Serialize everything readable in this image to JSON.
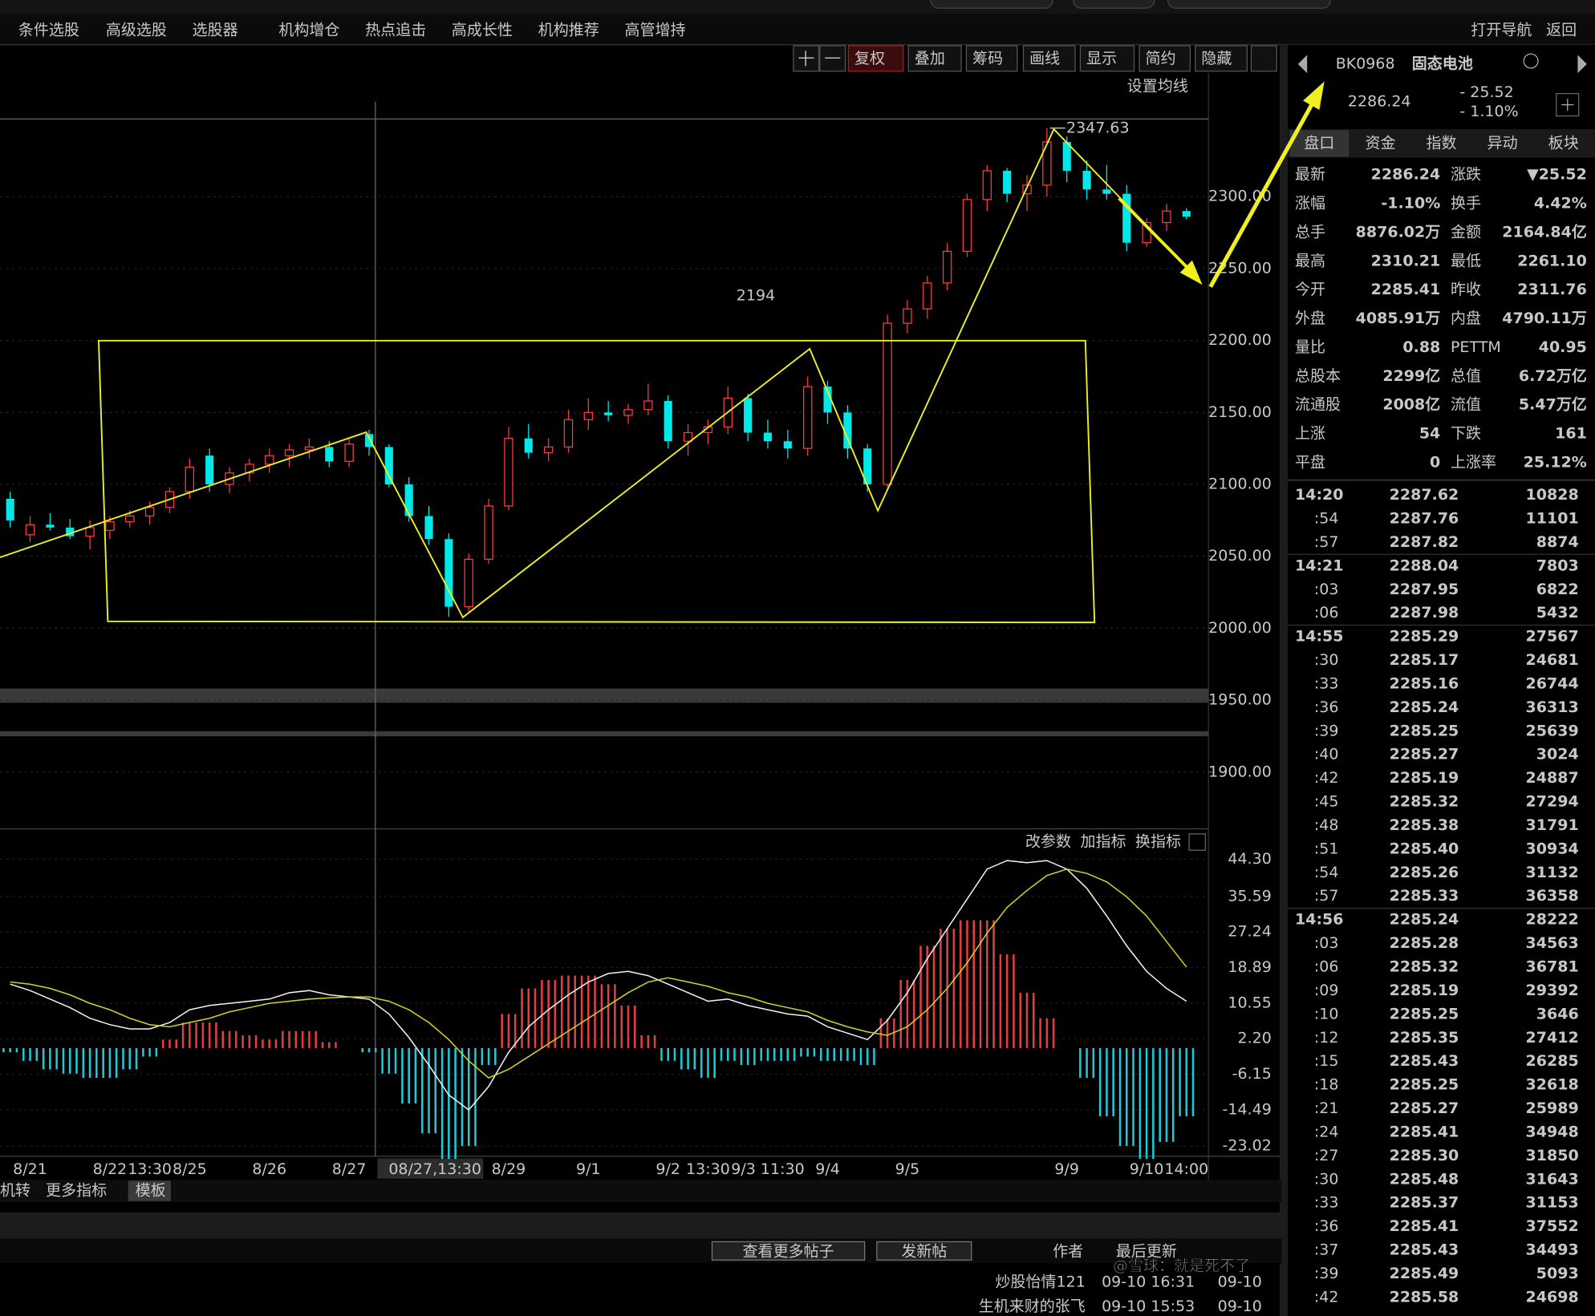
{
  "menu": {
    "items": [
      "条件选股",
      "高级选股",
      "选股器",
      "机构增仓",
      "热点追击",
      "高成长性",
      "机构推荐",
      "高管增持"
    ],
    "right": [
      "打开导航",
      "返回"
    ]
  },
  "toolbar": {
    "buttons": [
      "复权",
      "叠加",
      "筹码",
      "画线",
      "显示",
      "简约",
      "隐藏"
    ],
    "ma_setting": "设置均线",
    "indicator_buttons": [
      "改参数",
      "加指标",
      "换指标"
    ],
    "bottom_tabs": [
      "机转",
      "更多指标",
      "模板"
    ]
  },
  "chart_data": [
    {
      "type": "candlestick",
      "up_color": "#ff3a3a",
      "down_color": "#00e8e8",
      "grid": true,
      "ylim": [
        1862,
        2366
      ],
      "yticks": [
        {
          "value": 1900,
          "label": "1900.00"
        },
        {
          "value": 1950,
          "label": "1950.00"
        },
        {
          "value": 2000,
          "label": "2000.00"
        },
        {
          "value": 2050,
          "label": "2050.00"
        },
        {
          "value": 2100,
          "label": "2100.00"
        },
        {
          "value": 2150,
          "label": "2150.00"
        },
        {
          "value": 2200,
          "label": "2200.00"
        },
        {
          "value": 2250,
          "label": "2250.00"
        },
        {
          "value": 2300,
          "label": "2300.00"
        }
      ],
      "categories": [
        null,
        "8/21",
        null,
        null,
        null,
        "8/22",
        null,
        "13:30",
        null,
        "8/25",
        null,
        null,
        null,
        "8/26",
        null,
        null,
        null,
        "8/27",
        null,
        null,
        null,
        null,
        null,
        null,
        null,
        "8/29",
        null,
        null,
        null,
        "9/1",
        null,
        null,
        null,
        "9/2",
        null,
        "13:30",
        null,
        null,
        "9/3 11:30",
        null,
        null,
        "9/4",
        null,
        null,
        null,
        "9/5",
        null,
        null,
        null,
        null,
        null,
        null,
        null,
        "9/9",
        null,
        null,
        null,
        "9/10",
        null,
        "14:00"
      ],
      "open": [
        2090,
        2065,
        2072,
        2070,
        2064,
        2068,
        2074,
        2078,
        2084,
        2095,
        2120,
        2100,
        2108,
        2114,
        2120,
        2124,
        2126,
        2116,
        2135,
        2126,
        2100,
        2078,
        2062,
        2015,
        2048,
        2085,
        2132,
        2122,
        2126,
        2145,
        2150,
        2148,
        2152,
        2158,
        2130,
        2136,
        2140,
        2160,
        2136,
        2130,
        2125,
        2168,
        2150,
        2125,
        2100,
        2212,
        2222,
        2240,
        2262,
        2298,
        2318,
        2302,
        2308,
        2338,
        2318,
        2305,
        2302,
        2268,
        2282,
        2290
      ],
      "high": [
        2095,
        2078,
        2080,
        2076,
        2075,
        2078,
        2082,
        2088,
        2098,
        2118,
        2125,
        2112,
        2118,
        2125,
        2128,
        2132,
        2130,
        2132,
        2138,
        2128,
        2105,
        2085,
        2066,
        2052,
        2090,
        2140,
        2142,
        2132,
        2152,
        2160,
        2158,
        2156,
        2170,
        2162,
        2142,
        2145,
        2168,
        2163,
        2145,
        2138,
        2175,
        2172,
        2155,
        2128,
        2218,
        2228,
        2245,
        2268,
        2302,
        2322,
        2320,
        2315,
        2347.63,
        2342,
        2325,
        2322,
        2308,
        2285,
        2295,
        2292
      ],
      "low": [
        2070,
        2060,
        2068,
        2062,
        2055,
        2062,
        2070,
        2072,
        2080,
        2090,
        2095,
        2094,
        2102,
        2108,
        2112,
        2118,
        2112,
        2112,
        2120,
        2098,
        2074,
        2058,
        2008,
        2010,
        2045,
        2082,
        2118,
        2116,
        2122,
        2138,
        2144,
        2142,
        2148,
        2125,
        2120,
        2128,
        2135,
        2130,
        2125,
        2118,
        2120,
        2142,
        2118,
        2095,
        2098,
        2205,
        2215,
        2235,
        2258,
        2290,
        2296,
        2290,
        2300,
        2310,
        2298,
        2298,
        2262,
        2265,
        2276,
        2284
      ],
      "close": [
        2075,
        2072,
        2070,
        2064,
        2070,
        2074,
        2078,
        2084,
        2095,
        2112,
        2100,
        2108,
        2114,
        2120,
        2124,
        2126,
        2116,
        2128,
        2126,
        2100,
        2078,
        2062,
        2015,
        2048,
        2085,
        2132,
        2122,
        2126,
        2145,
        2150,
        2148,
        2152,
        2158,
        2130,
        2136,
        2140,
        2160,
        2136,
        2130,
        2125,
        2168,
        2150,
        2125,
        2100,
        2212,
        2222,
        2240,
        2262,
        2298,
        2318,
        2302,
        2308,
        2338,
        2318,
        2305,
        2302,
        2268,
        2282,
        2290,
        2286
      ],
      "high_label": 2347.63,
      "annotation": "2194",
      "crosshair_label": "08/27,13:30"
    },
    {
      "type": "macd",
      "ylim": [
        -25.4,
        45
      ],
      "yticks": [
        {
          "value": 44.3,
          "label": "44.30"
        },
        35.59,
        27.24,
        18.89,
        10.55,
        {
          "value": 2.2,
          "label": "2.20"
        },
        -6.15,
        -14.49,
        -23.02
      ],
      "series": [
        {
          "color": "#f2f2f2",
          "values": [
            15,
            13.5,
            11.5,
            9.5,
            7,
            5.5,
            4.5,
            4.5,
            6,
            9,
            10,
            10.5,
            11,
            11.5,
            13,
            13.5,
            12.5,
            12,
            11.5,
            8,
            2.5,
            -4,
            -11,
            -14.5,
            -9,
            -1,
            5,
            9,
            12.5,
            15.5,
            17.5,
            18,
            17,
            15,
            13,
            11,
            11.5,
            10,
            9,
            8,
            7.5,
            5,
            3.5,
            2,
            6.5,
            13,
            21,
            28,
            35,
            42,
            44,
            43.5,
            44,
            42,
            37.5,
            31,
            24,
            18,
            14,
            11
          ]
        },
        {
          "color": "#d8d020",
          "values": [
            15.5,
            15,
            14,
            12.5,
            10.5,
            9,
            7,
            5.5,
            5,
            6,
            7,
            8.5,
            9.5,
            10.5,
            11,
            11.5,
            11.8,
            12,
            12,
            11,
            9,
            6,
            2,
            -3,
            -7,
            -5,
            -2,
            1,
            4,
            7,
            10,
            13,
            15.5,
            16.5,
            15.5,
            14.5,
            13,
            12,
            10.5,
            9.5,
            8.5,
            6.5,
            5,
            3.8,
            3,
            5,
            9,
            14,
            20,
            27,
            33,
            37,
            40.5,
            42,
            41,
            39,
            35.5,
            31,
            25,
            19
          ]
        }
      ],
      "histogram": {
        "up_color": "#e04040",
        "down_color": "#20c8d8",
        "values": [
          -1,
          -3,
          -5,
          -6,
          -7,
          -7,
          -5,
          -2,
          2,
          6,
          6,
          4,
          3,
          2,
          4,
          4,
          1.4,
          0,
          -1,
          -6,
          -13,
          -20,
          -26,
          -23,
          -4,
          8,
          14,
          16,
          17,
          17,
          15,
          10,
          3,
          -3,
          -5,
          -7,
          -3,
          -4,
          -3,
          -3,
          -2,
          -3,
          -3,
          -4,
          7,
          16,
          24,
          28,
          30,
          30,
          22,
          13,
          7,
          0,
          -7,
          -16,
          -23,
          -26,
          -22,
          -16
        ]
      }
    }
  ],
  "quote": {
    "code": "BK0968",
    "name": "固态电池",
    "price": "2286.24",
    "change": "- 25.52",
    "pct": "- 1.10%",
    "tabs": [
      "盘口",
      "资金",
      "指数",
      "异动",
      "板块"
    ],
    "stats": [
      [
        "最新",
        "2286.24",
        "涨跌",
        "▼25.52"
      ],
      [
        "涨幅",
        "-1.10%",
        "换手",
        "4.42%"
      ],
      [
        "总手",
        "8876.02万",
        "金额",
        "2164.84亿"
      ],
      [
        "最高",
        "2310.21",
        "最低",
        "2261.10"
      ],
      [
        "今开",
        "2285.41",
        "昨收",
        "2311.76"
      ],
      [
        "外盘",
        "4085.91万",
        "内盘",
        "4790.11万"
      ],
      [
        "量比",
        "0.88",
        "PETTM",
        "40.95"
      ],
      [
        "总股本",
        "2299亿",
        "总值",
        "6.72万亿"
      ],
      [
        "流通股",
        "2008亿",
        "流值",
        "5.47万亿"
      ],
      [
        "上涨",
        "54",
        "下跌",
        "161"
      ],
      [
        "平盘",
        "0",
        "上涨率",
        "25.12%"
      ]
    ],
    "stat_colors": [
      [
        "#2ee05a",
        "#2ee05a"
      ],
      [
        "#2ee05a",
        "#e8e8e8"
      ],
      [
        "#e8e8e8",
        "#1ad8ff"
      ],
      [
        "#2ee05a",
        "#2ee05a"
      ],
      [
        "#2ee05a",
        "#e8e8e8"
      ],
      [
        "#ff4040",
        "#2ee05a"
      ],
      [
        "#2ee05a",
        "#e8e8e8"
      ],
      [
        "#e8e8e8",
        "#e8e8e8"
      ],
      [
        "#e8e8e8",
        "#e8e8e8"
      ],
      [
        "#ff4040",
        "#2ee05a"
      ],
      [
        "#e8e8e8",
        "#e8e8e8"
      ]
    ],
    "trade_colors": {
      "price": "#2ee05a",
      "volume": "#ff4040"
    },
    "trades": [
      [
        "14:20",
        "2287.62",
        "10828"
      ],
      [
        ":54",
        "2287.76",
        "11101"
      ],
      [
        ":57",
        "2287.82",
        "8874"
      ],
      [
        "14:21",
        "2288.04",
        "7803"
      ],
      [
        ":03",
        "2287.95",
        "6822"
      ],
      [
        ":06",
        "2287.98",
        "5432"
      ],
      [
        "14:55",
        "2285.29",
        "27567"
      ],
      [
        ":30",
        "2285.17",
        "24681"
      ],
      [
        ":33",
        "2285.16",
        "26744"
      ],
      [
        ":36",
        "2285.24",
        "36313"
      ],
      [
        ":39",
        "2285.25",
        "25639"
      ],
      [
        ":40",
        "2285.27",
        "3024"
      ],
      [
        ":42",
        "2285.19",
        "24887"
      ],
      [
        ":45",
        "2285.32",
        "27294"
      ],
      [
        ":48",
        "2285.38",
        "31791"
      ],
      [
        ":51",
        "2285.40",
        "30934"
      ],
      [
        ":54",
        "2285.26",
        "31132"
      ],
      [
        ":57",
        "2285.33",
        "36358"
      ],
      [
        "14:56",
        "2285.24",
        "28222"
      ],
      [
        ":03",
        "2285.28",
        "34563"
      ],
      [
        ":06",
        "2285.32",
        "36781"
      ],
      [
        ":09",
        "2285.19",
        "29392"
      ],
      [
        ":10",
        "2285.25",
        "3646"
      ],
      [
        ":12",
        "2285.35",
        "27412"
      ],
      [
        ":15",
        "2285.43",
        "26285"
      ],
      [
        ":18",
        "2285.25",
        "32618"
      ],
      [
        ":21",
        "2285.27",
        "25989"
      ],
      [
        ":24",
        "2285.41",
        "34948"
      ],
      [
        ":27",
        "2285.30",
        "31850"
      ],
      [
        ":30",
        "2285.48",
        "31643"
      ],
      [
        ":33",
        "2285.37",
        "31153"
      ],
      [
        ":36",
        "2285.41",
        "37552"
      ],
      [
        ":37",
        "2285.43",
        "34493"
      ],
      [
        ":39",
        "2285.49",
        "5093"
      ],
      [
        ":42",
        "2285.58",
        "24698"
      ]
    ]
  },
  "posts": {
    "buttons": [
      "查看更多帖子",
      "发新帖"
    ],
    "headers": [
      "作者",
      "最后更新"
    ],
    "rows": [
      [
        "炒股怡情121",
        "09-10 16:31",
        "09-10"
      ],
      [
        "生机来财的张飞",
        "09-10 15:53",
        "09-10"
      ]
    ]
  },
  "watermark": "@雪球：就是死不了"
}
